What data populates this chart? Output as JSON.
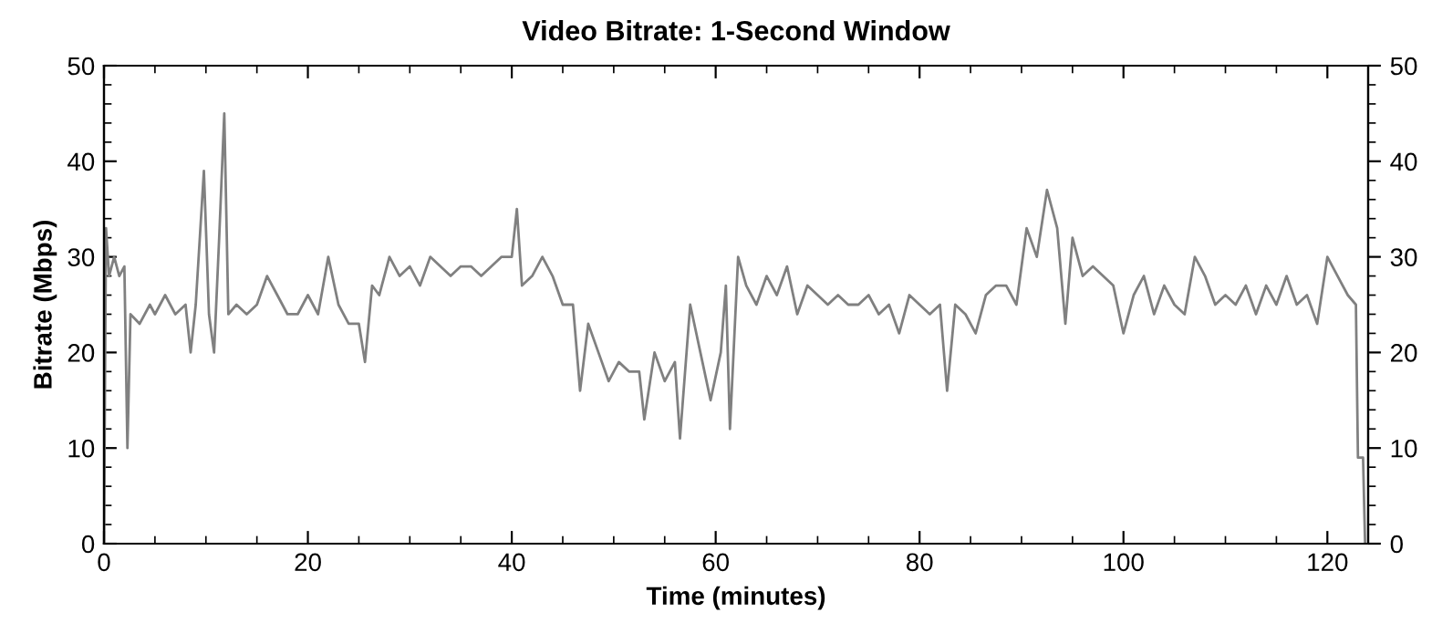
{
  "chart_data": {
    "type": "line",
    "title": "Video Bitrate: 1-Second Window",
    "xlabel": "Time (minutes)",
    "ylabel": "Bitrate (Mbps)",
    "xlim": [
      0,
      124
    ],
    "xticks": [
      0,
      20,
      40,
      60,
      80,
      100,
      120
    ],
    "ylim": [
      0,
      50
    ],
    "yticks": [
      0,
      10,
      20,
      30,
      40,
      50
    ],
    "y2lim": [
      0,
      50
    ],
    "y2ticks": [
      0,
      10,
      20,
      30,
      40,
      50
    ],
    "grid": false,
    "marker": "none",
    "line_style": "solid",
    "series": [
      {
        "color": "#808080",
        "x": [
          0,
          0.2,
          0.5,
          1,
          1.5,
          2,
          2.3,
          2.6,
          3.5,
          4.5,
          5,
          6,
          7,
          8,
          8.5,
          9,
          9.8,
          10.3,
          10.8,
          11.3,
          11.8,
          12.2,
          13,
          14,
          15,
          16,
          17,
          18,
          19,
          20,
          21,
          22,
          23,
          24,
          25,
          25.6,
          26.3,
          27,
          28,
          29,
          30,
          31,
          32,
          33,
          34,
          35,
          36,
          37,
          38,
          39,
          40,
          40.5,
          41,
          42,
          43,
          44,
          45,
          46,
          46.7,
          47.5,
          48.5,
          49.5,
          50.5,
          51.5,
          52.5,
          53,
          54,
          55,
          56,
          56.5,
          57.5,
          58.5,
          59.5,
          60.5,
          61,
          61.4,
          62.2,
          63,
          64,
          65,
          66,
          67,
          68,
          69,
          70,
          71,
          72,
          73,
          74,
          75,
          76,
          77,
          78,
          79,
          80,
          81,
          82,
          82.7,
          83.5,
          84.5,
          85.5,
          86.5,
          87.5,
          88.5,
          89.5,
          90.5,
          91.5,
          92.5,
          93.5,
          94.3,
          95,
          96,
          97,
          98,
          99,
          100,
          101,
          102,
          103,
          104,
          105,
          106,
          107,
          108,
          109,
          110,
          111,
          112,
          113,
          114,
          115,
          116,
          117,
          118,
          119,
          120,
          121,
          122,
          122.8,
          123,
          123.5,
          123.7
        ],
        "values": [
          0,
          33,
          28,
          30,
          28,
          29,
          10,
          24,
          23,
          25,
          24,
          26,
          24,
          25,
          20,
          25,
          39,
          24,
          20,
          32,
          45,
          24,
          25,
          24,
          25,
          28,
          26,
          24,
          24,
          26,
          24,
          30,
          25,
          23,
          23,
          19,
          27,
          26,
          30,
          28,
          29,
          27,
          30,
          29,
          28,
          29,
          29,
          28,
          29,
          30,
          30,
          35,
          27,
          28,
          30,
          28,
          25,
          25,
          16,
          23,
          20,
          17,
          19,
          18,
          18,
          13,
          20,
          17,
          19,
          11,
          25,
          20,
          15,
          20,
          27,
          12,
          30,
          27,
          25,
          28,
          26,
          29,
          24,
          27,
          26,
          25,
          26,
          25,
          25,
          26,
          24,
          25,
          22,
          26,
          25,
          24,
          25,
          16,
          25,
          24,
          22,
          26,
          27,
          27,
          25,
          33,
          30,
          37,
          33,
          23,
          32,
          28,
          29,
          28,
          27,
          22,
          26,
          28,
          24,
          27,
          25,
          24,
          30,
          28,
          25,
          26,
          25,
          27,
          24,
          27,
          25,
          28,
          25,
          26,
          23,
          30,
          28,
          26,
          25,
          9,
          9,
          0
        ]
      }
    ]
  }
}
